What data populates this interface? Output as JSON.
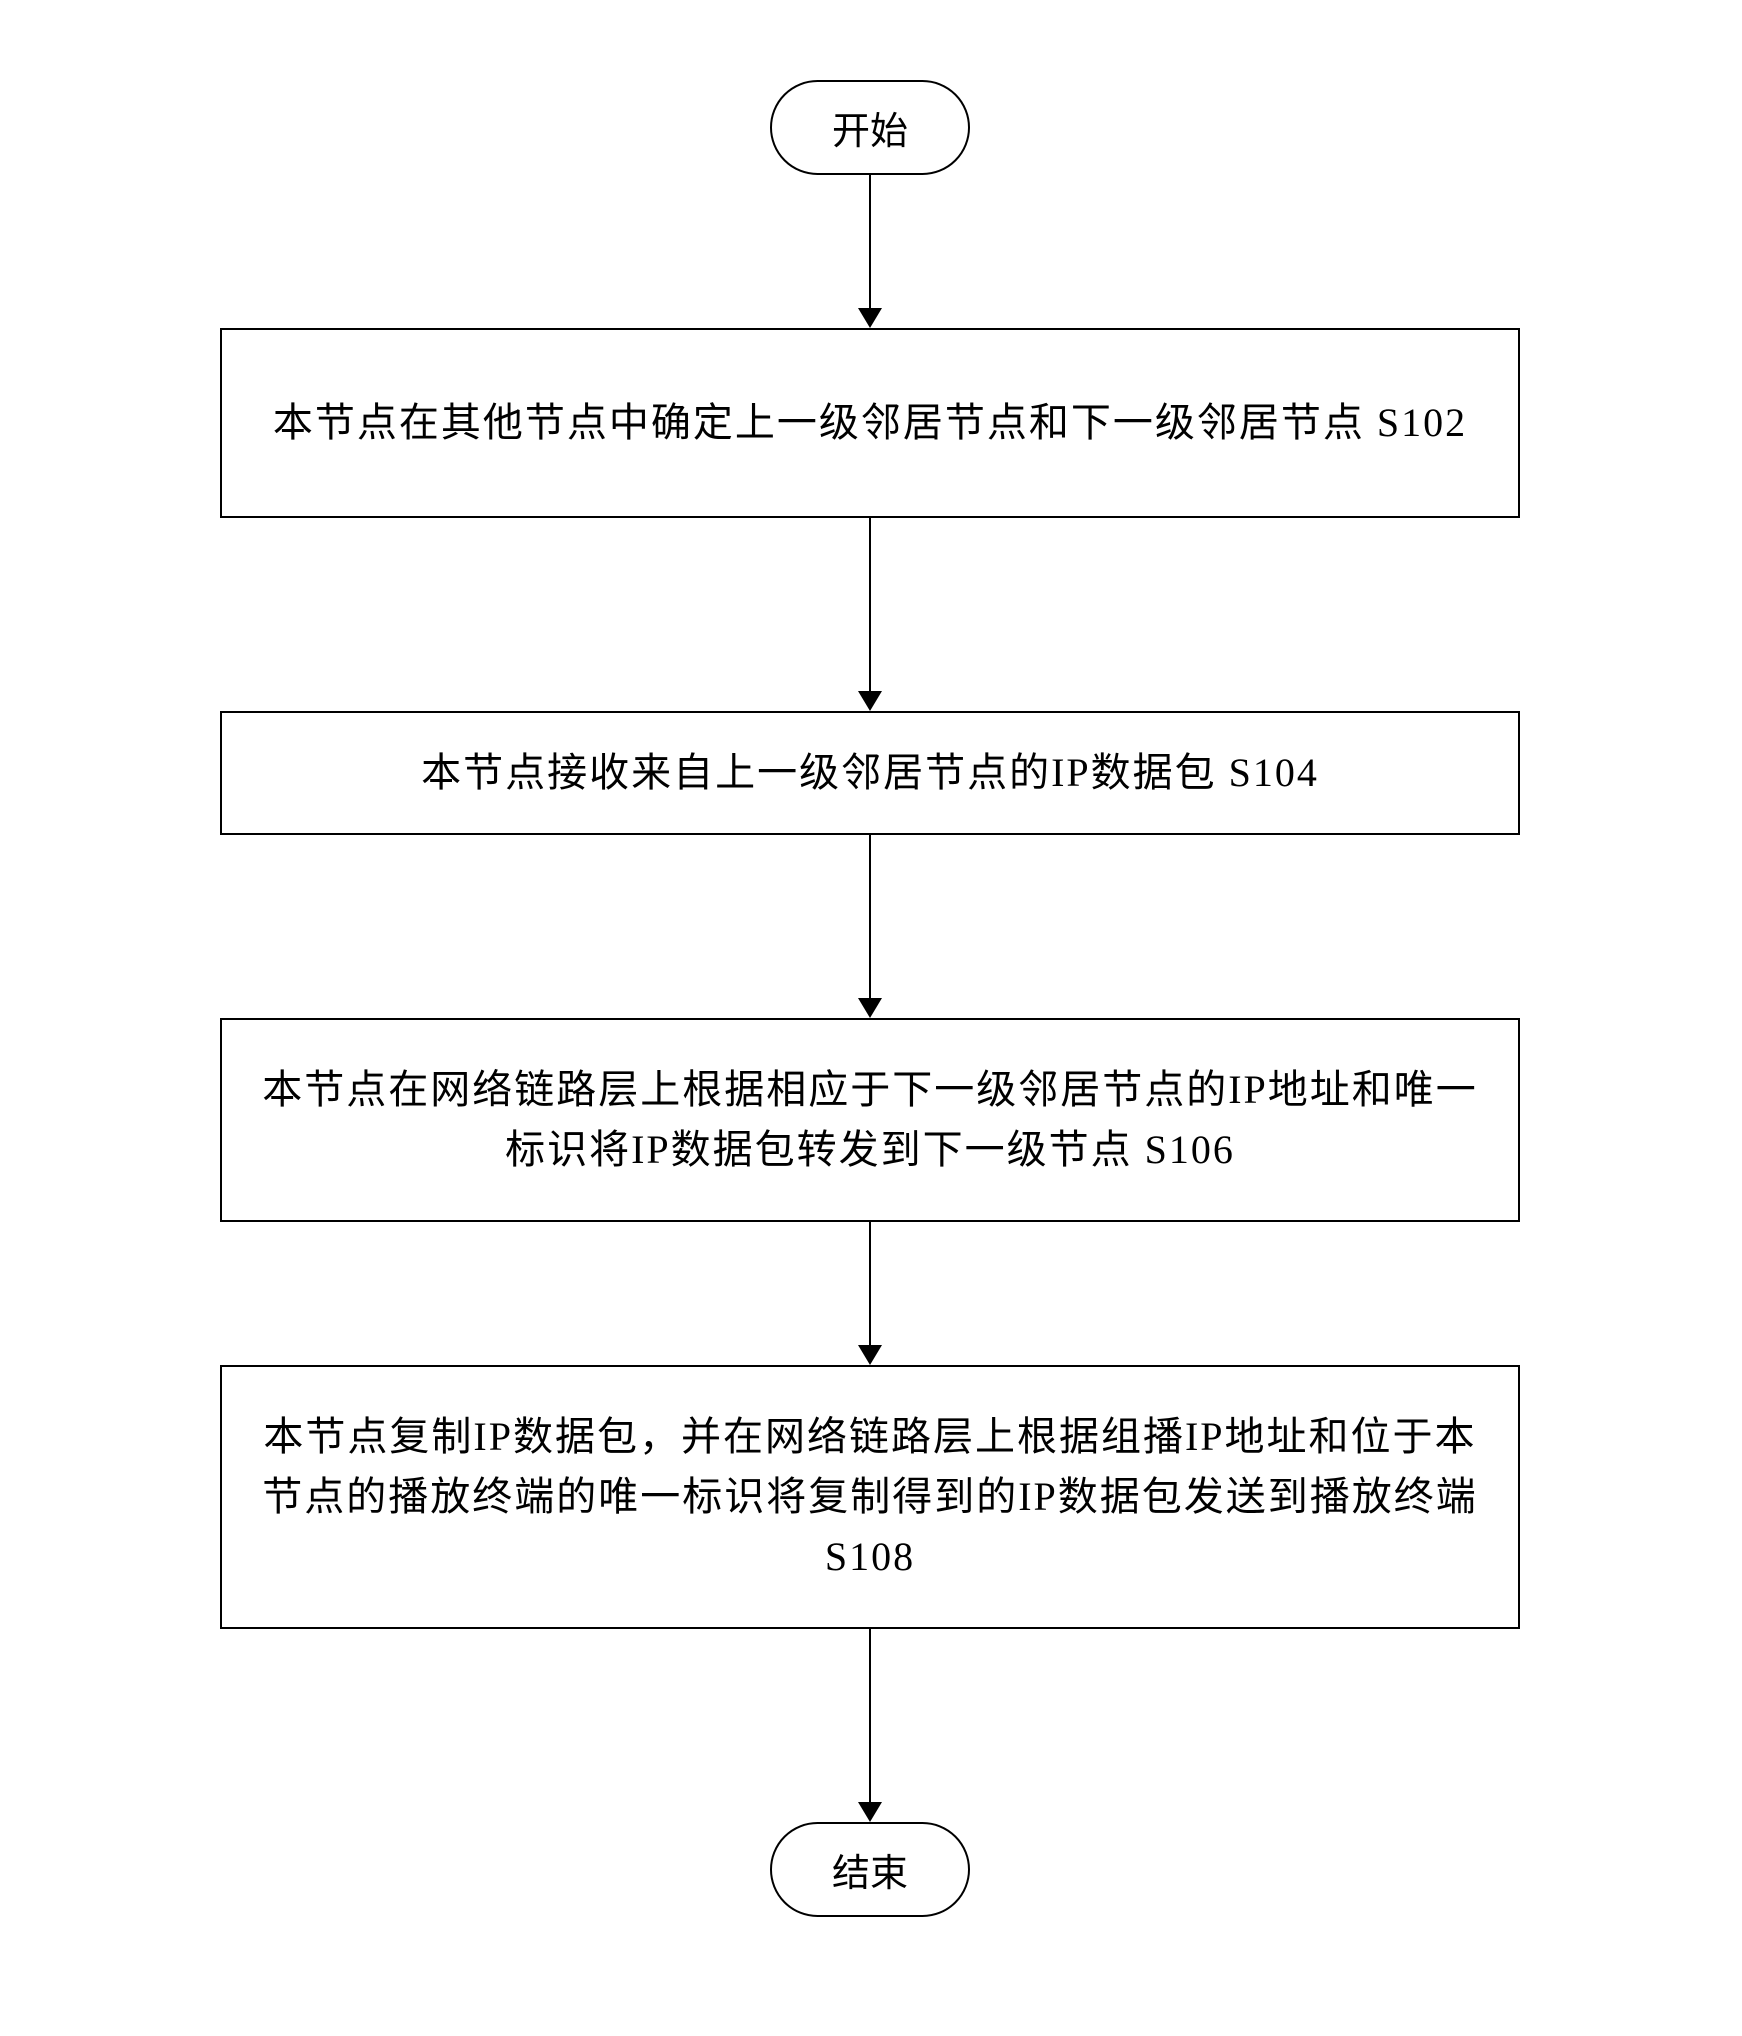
{
  "flowchart": {
    "type": "flowchart",
    "direction": "vertical",
    "background_color": "#ffffff",
    "border_color": "#000000",
    "border_width": 2.5,
    "text_color": "#000000",
    "font_size": 40,
    "font_family": "SimSun",
    "arrow_color": "#000000",
    "nodes": [
      {
        "id": "start",
        "type": "terminator",
        "label": "开始"
      },
      {
        "id": "s102",
        "type": "process",
        "label": "本节点在其他节点中确定上一级邻居节点和下一级邻居节点 S102",
        "height_class": "tall"
      },
      {
        "id": "s104",
        "type": "process",
        "label": "本节点接收来自上一级邻居节点的IP数据包  S104",
        "height_class": "short"
      },
      {
        "id": "s106",
        "type": "process",
        "label": "本节点在网络链路层上根据相应于下一级邻居节点的IP地址和唯一标识将IP数据包转发到下一级节点  S106",
        "height_class": "medium"
      },
      {
        "id": "s108",
        "type": "process",
        "label": "本节点复制IP数据包，并在网络链路层上根据组播IP地址和位于本节点的播放终端的唯一标识将复制得到的IP数据包发送到播放终端  S108",
        "height_class": "tall"
      },
      {
        "id": "end",
        "type": "terminator",
        "label": "结束"
      }
    ],
    "arrow_heights": [
      135,
      175,
      165,
      125,
      175
    ]
  }
}
